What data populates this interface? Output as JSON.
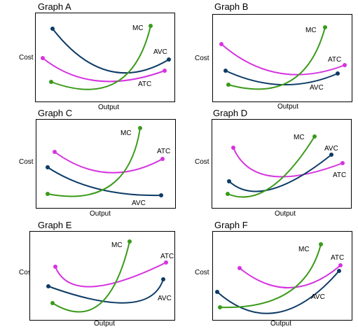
{
  "colors": {
    "avc": "#0d3b66",
    "atc": "#d633e0",
    "mc": "#3a9a1a"
  },
  "graphs": [
    {
      "title": "Graph A",
      "ylabel": "Cost",
      "xlabel": "Output",
      "labels": {
        "mc": "MC",
        "avc": "AVC",
        "atc": "ATC"
      },
      "atc_label_color": "#000000"
    },
    {
      "title": "Graph B",
      "ylabel": "Cost",
      "xlabel": "Output",
      "labels": {
        "mc": "MC",
        "avc": "AVC",
        "atc": "ATC"
      },
      "atc_label_color": "#000000"
    },
    {
      "title": "Graph C",
      "ylabel": "Cost",
      "xlabel": "Output",
      "labels": {
        "mc": "MC",
        "avc": "AVC",
        "atc": "ATC"
      },
      "atc_label_color": "#000000"
    },
    {
      "title": "Graph D",
      "ylabel": "Cost",
      "xlabel": "Output",
      "labels": {
        "mc": "MC",
        "avc": "AVC",
        "atc": "ATC"
      },
      "atc_label_color": "#0d3b66"
    },
    {
      "title": "Graph E",
      "ylabel": "Cost",
      "xlabel": "Output",
      "labels": {
        "mc": "MC",
        "avc": "AVC",
        "atc": "ATC"
      },
      "atc_label_color": "#000000"
    },
    {
      "title": "Graph F",
      "ylabel": "Cost",
      "xlabel": "Output",
      "labels": {
        "mc": "MC",
        "avc": "AVC",
        "atc": "ATC"
      },
      "atc_label_color": "#000000"
    }
  ]
}
